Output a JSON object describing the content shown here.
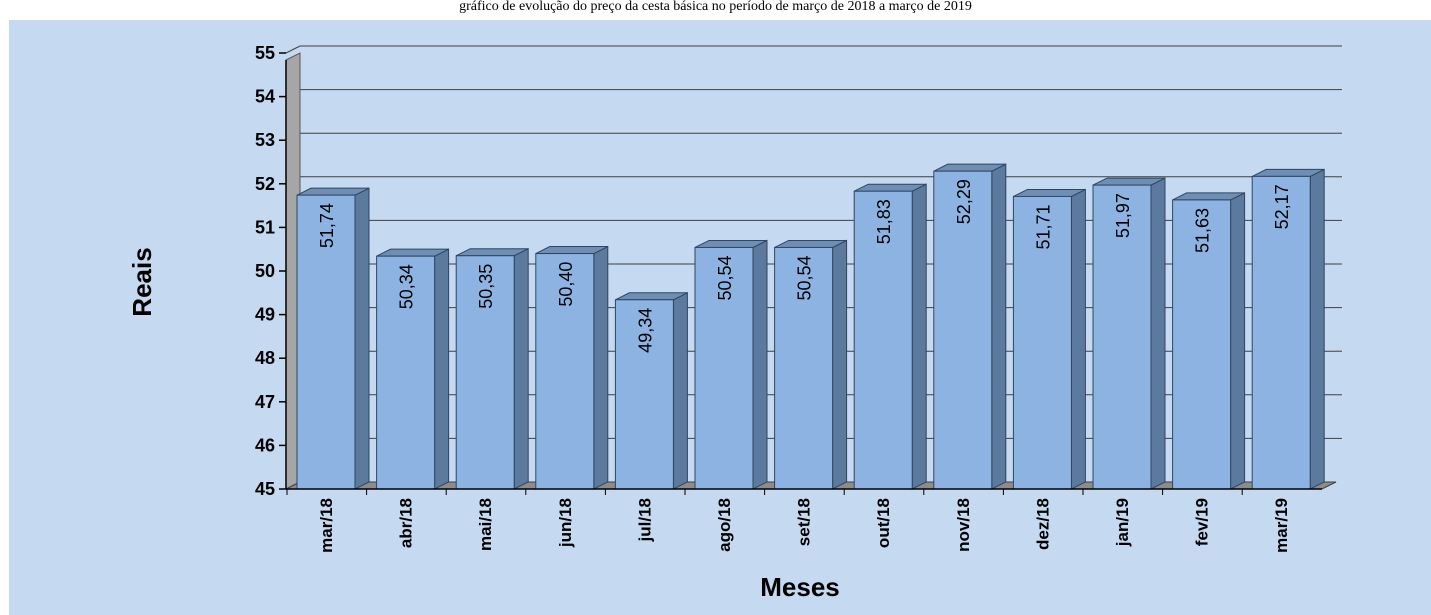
{
  "caption": "gráfico de evolução do preço da cesta básica no período de março de 2018 a março de 2019",
  "chart_data": {
    "type": "bar",
    "title": "",
    "xlabel": "Meses",
    "ylabel": "Reais",
    "categories": [
      "mar/18",
      "abr/18",
      "mai/18",
      "jun/18",
      "jul/18",
      "ago/18",
      "set/18",
      "out/18",
      "nov/18",
      "dez/18",
      "jan/19",
      "fev/19",
      "mar/19"
    ],
    "values": [
      51.74,
      50.34,
      50.35,
      50.4,
      49.34,
      50.54,
      50.54,
      51.83,
      52.29,
      51.71,
      51.97,
      51.63,
      52.17
    ],
    "value_labels": [
      "51,74",
      "50,34",
      "50,35",
      "50,40",
      "49,34",
      "50,54",
      "50,54",
      "51,83",
      "52,29",
      "51,71",
      "51,97",
      "51,63",
      "52,17"
    ],
    "ylim": [
      45,
      55
    ],
    "yticks": [
      "45",
      "46",
      "47",
      "48",
      "49",
      "50",
      "51",
      "52",
      "53",
      "54",
      "55"
    ],
    "grid": true,
    "style": "3d",
    "colors": {
      "bar_front": "#8db3e2",
      "bar_side": "#5b7a9d",
      "bar_top": "#6f8eb3",
      "background": "#c5d9f1"
    }
  }
}
